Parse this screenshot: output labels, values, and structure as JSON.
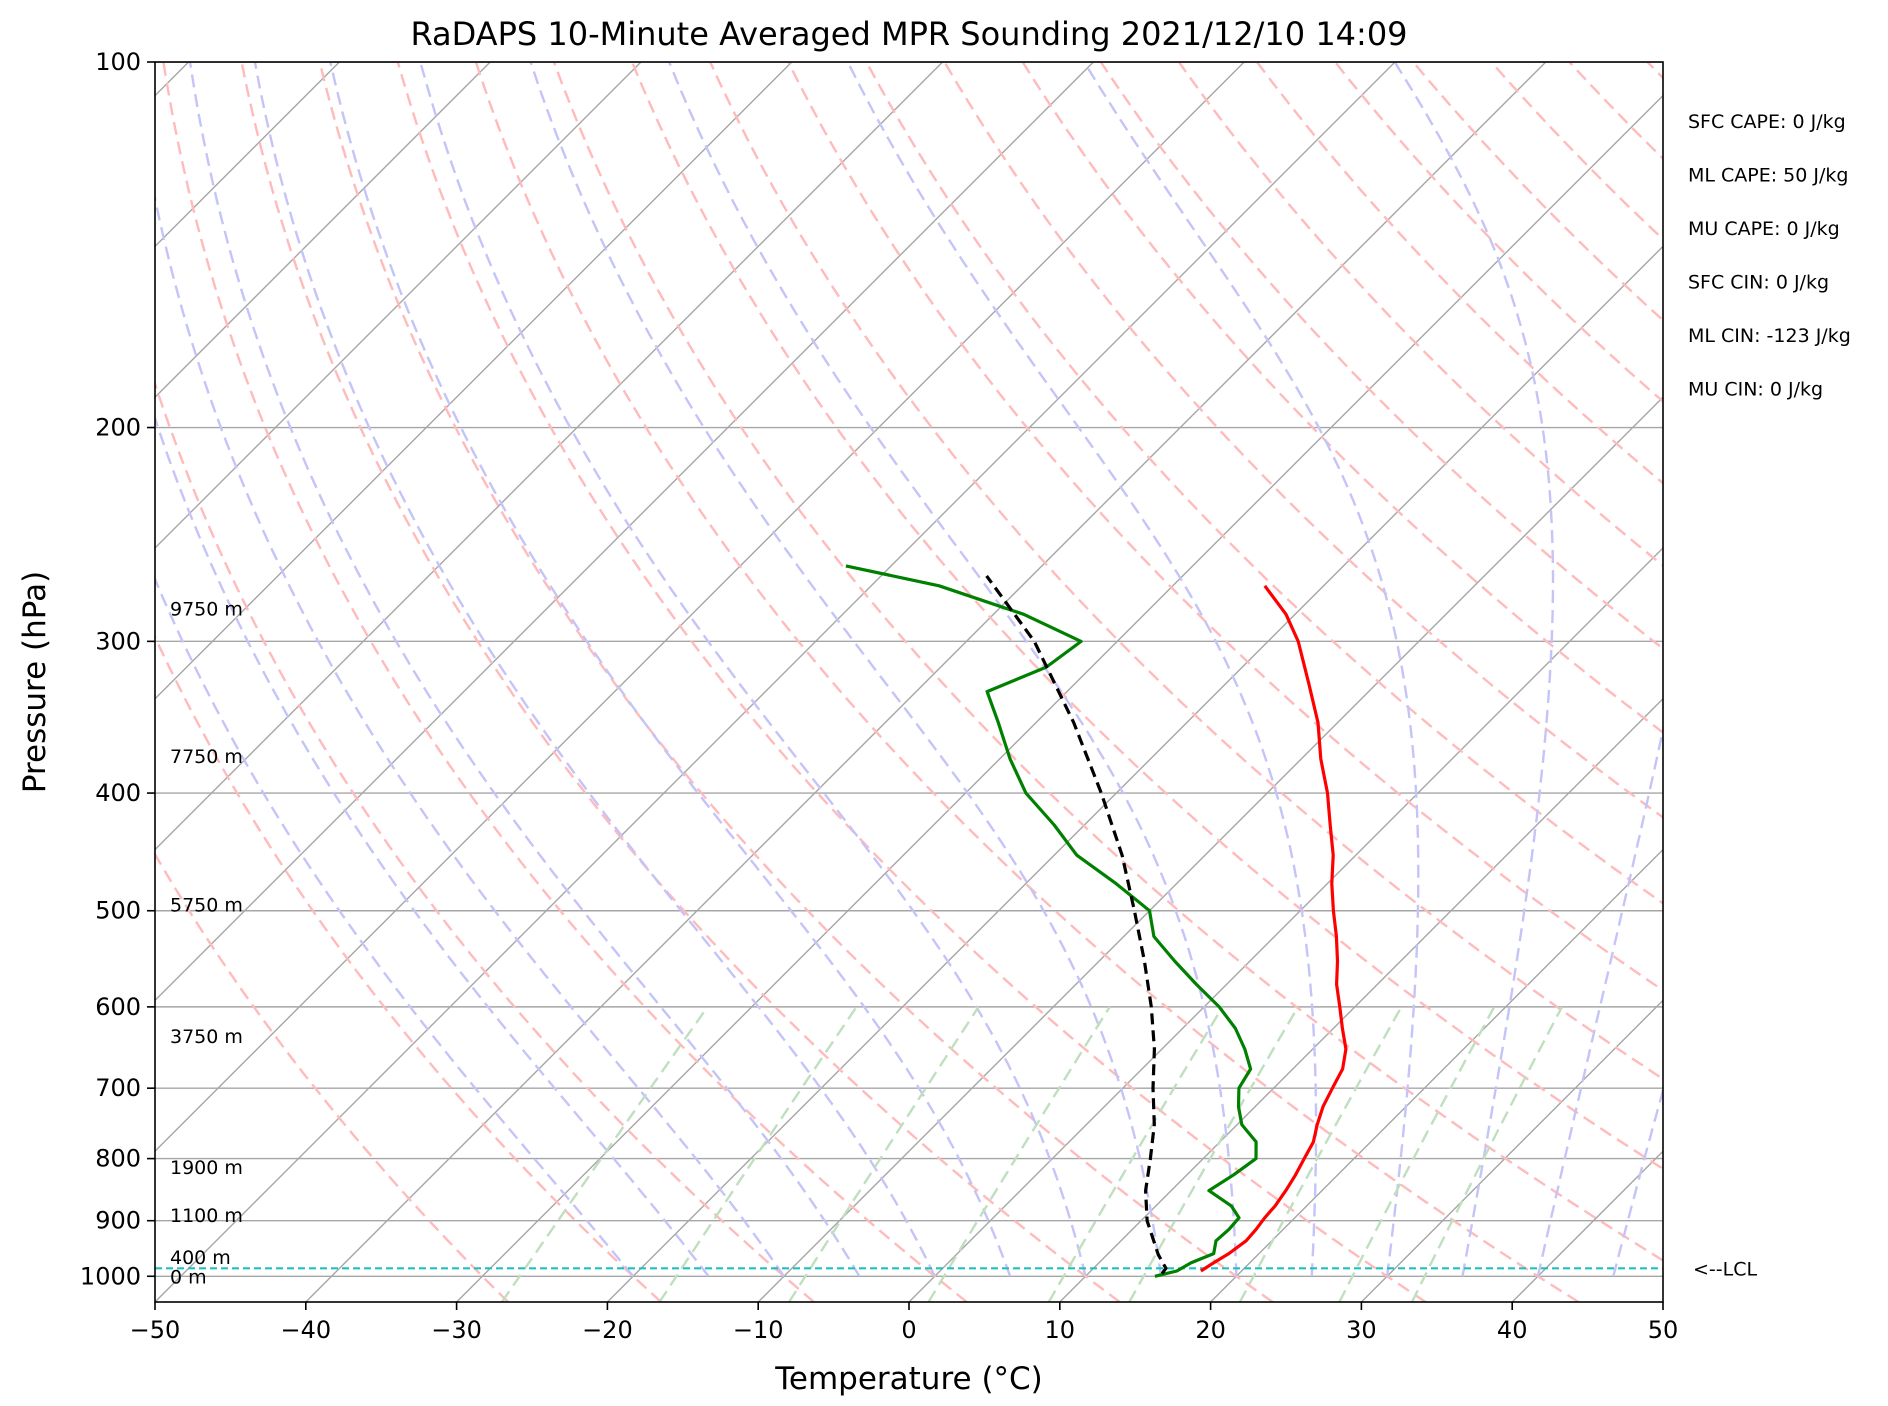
{
  "chart_data": {
    "type": "line",
    "title": "RaDAPS 10-Minute Averaged MPR Sounding 2021/12/10 14:09",
    "xlabel": "Temperature (°C)",
    "ylabel": "Pressure (hPa)",
    "xlim": [
      -50,
      50
    ],
    "ylim": [
      1050,
      100
    ],
    "y_scale": "log",
    "skew_t": true,
    "x_ticks": [
      "−50",
      "−40",
      "−30",
      "−20",
      "−10",
      "0",
      "10",
      "20",
      "30",
      "40",
      "50"
    ],
    "y_ticks": [
      {
        "p": 100,
        "label": "100"
      },
      {
        "p": 200,
        "label": "200"
      },
      {
        "p": 300,
        "label": "300"
      },
      {
        "p": 400,
        "label": "400"
      },
      {
        "p": 500,
        "label": "500"
      },
      {
        "p": 600,
        "label": "600"
      },
      {
        "p": 700,
        "label": "700"
      },
      {
        "p": 800,
        "label": "800"
      },
      {
        "p": 900,
        "label": "900"
      },
      {
        "p": 1000,
        "label": "1000"
      }
    ],
    "grid": true,
    "series": [
      {
        "role": "temperature",
        "color": "#ff0000",
        "points": [
          [
            990,
            17.3
          ],
          [
            975,
            17.6
          ],
          [
            958,
            18.0
          ],
          [
            935,
            18.3
          ],
          [
            915,
            18.2
          ],
          [
            895,
            18.0
          ],
          [
            875,
            17.9
          ],
          [
            850,
            17.6
          ],
          [
            825,
            17.2
          ],
          [
            800,
            16.7
          ],
          [
            775,
            16.2
          ],
          [
            750,
            15.3
          ],
          [
            725,
            14.5
          ],
          [
            700,
            13.9
          ],
          [
            675,
            13.3
          ],
          [
            650,
            12.2
          ],
          [
            625,
            10.6
          ],
          [
            600,
            9.0
          ],
          [
            575,
            7.3
          ],
          [
            550,
            5.8
          ],
          [
            525,
            4.1
          ],
          [
            500,
            2.2
          ],
          [
            475,
            0.3
          ],
          [
            450,
            -1.5
          ],
          [
            425,
            -3.7
          ],
          [
            400,
            -6.0
          ],
          [
            375,
            -8.7
          ],
          [
            350,
            -11.3
          ],
          [
            325,
            -14.5
          ],
          [
            300,
            -18.0
          ],
          [
            285,
            -20.6
          ],
          [
            270,
            -23.9
          ]
        ]
      },
      {
        "role": "dewpoint",
        "color": "#008000",
        "points": [
          [
            1000,
            14.6
          ],
          [
            990,
            15.7
          ],
          [
            975,
            16.1
          ],
          [
            958,
            17.0
          ],
          [
            935,
            16.3
          ],
          [
            915,
            16.4
          ],
          [
            895,
            16.3
          ],
          [
            875,
            15.0
          ],
          [
            850,
            12.5
          ],
          [
            825,
            13.1
          ],
          [
            800,
            13.5
          ],
          [
            775,
            12.4
          ],
          [
            750,
            10.3
          ],
          [
            725,
            8.9
          ],
          [
            700,
            7.7
          ],
          [
            675,
            7.2
          ],
          [
            650,
            5.5
          ],
          [
            625,
            3.5
          ],
          [
            600,
            1.0
          ],
          [
            575,
            -2.0
          ],
          [
            550,
            -5.0
          ],
          [
            525,
            -8.0
          ],
          [
            500,
            -10.0
          ],
          [
            475,
            -14.0
          ],
          [
            450,
            -18.5
          ],
          [
            425,
            -22.0
          ],
          [
            400,
            -26.0
          ],
          [
            375,
            -29.3
          ],
          [
            350,
            -32.5
          ],
          [
            330,
            -35.3
          ],
          [
            315,
            -33.0
          ],
          [
            300,
            -32.4
          ],
          [
            285,
            -38.0
          ],
          [
            270,
            -45.5
          ],
          [
            260,
            -53.0
          ]
        ]
      },
      {
        "role": "parcel",
        "color": "#000000",
        "points": [
          [
            995,
            14.9
          ],
          [
            985,
            14.8
          ],
          [
            960,
            13.4
          ],
          [
            900,
            10.4
          ],
          [
            850,
            8.3
          ],
          [
            800,
            6.5
          ],
          [
            750,
            4.5
          ],
          [
            700,
            2.0
          ],
          [
            650,
            -0.5
          ],
          [
            600,
            -3.5
          ],
          [
            550,
            -7.0
          ],
          [
            500,
            -11.0
          ],
          [
            450,
            -15.5
          ],
          [
            400,
            -21.0
          ],
          [
            350,
            -27.5
          ],
          [
            300,
            -35.5
          ],
          [
            265,
            -43.0
          ]
        ]
      }
    ],
    "reference_lines": {
      "isotherm_color": "#a6a6a6",
      "dry_adiabat_color": "#ffbbbb",
      "moist_adiabat_color": "#c4c4f9",
      "mixing_ratio_color": "#bfdfbf"
    },
    "lcl": {
      "pressure": 985,
      "label": "<--LCL",
      "color": "#20c0c0"
    },
    "height_labels": [
      {
        "p": 1000,
        "text": "0 m"
      },
      {
        "p": 964,
        "text": "400 m"
      },
      {
        "p": 890,
        "text": "1100 m"
      },
      {
        "p": 813,
        "text": "1900 m"
      },
      {
        "p": 634,
        "text": "3750 m"
      },
      {
        "p": 494,
        "text": "5750 m"
      },
      {
        "p": 373,
        "text": "7750 m"
      },
      {
        "p": 282,
        "text": "9750 m"
      }
    ],
    "stats": [
      "SFC CAPE: 0 J/kg",
      "ML CAPE: 50 J/kg",
      "MU CAPE: 0 J/kg",
      "SFC CIN: 0 J/kg",
      "ML CIN: -123 J/kg",
      "MU CIN: 0 J/kg"
    ]
  }
}
